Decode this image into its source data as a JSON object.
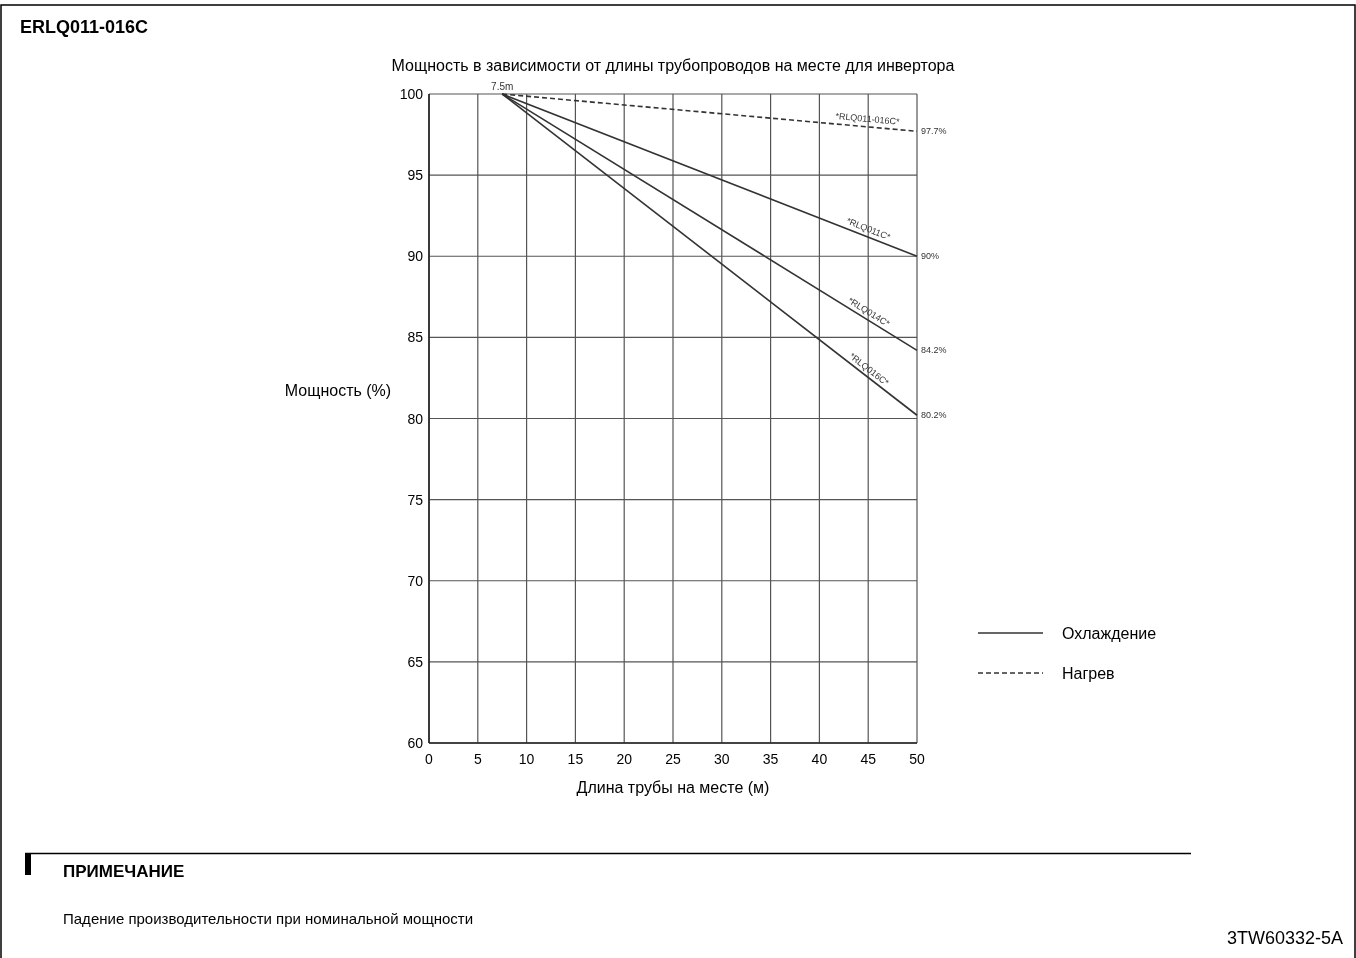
{
  "chart_data": {
    "type": "line",
    "title": "Мощность в зависимости от длины трубопроводов на месте для инвертора",
    "xlabel": "Длина трубы на месте (м)",
    "ylabel": "Мощность (%)",
    "x": [
      7.5,
      50
    ],
    "series": [
      {
        "name": "*RLQ011-016C*",
        "color": "#333333",
        "line_style": "dashed",
        "values": [
          100,
          97.7
        ],
        "value_labels": [
          null,
          "97.7%"
        ]
      },
      {
        "name": "*RLQ011C*",
        "color": "#333333",
        "line_style": "solid",
        "values": [
          100,
          90
        ],
        "value_labels": [
          null,
          "90%"
        ]
      },
      {
        "name": "*RLQ014C*",
        "color": "#333333",
        "line_style": "solid",
        "values": [
          100,
          84.2
        ],
        "value_labels": [
          null,
          "84.2%"
        ]
      },
      {
        "name": "*RLQ016C*",
        "color": "#333333",
        "line_style": "solid",
        "values": [
          100,
          80.2
        ],
        "value_labels": [
          null,
          "80.2%"
        ]
      }
    ],
    "xlim": [
      0,
      50
    ],
    "xticks": [
      0,
      5,
      10,
      15,
      20,
      25,
      30,
      35,
      40,
      45,
      50
    ],
    "ylim": [
      60,
      100
    ],
    "yticks": [
      60,
      65,
      70,
      75,
      80,
      85,
      90,
      95,
      100
    ],
    "grid": true,
    "legend": "right",
    "annotations": [
      "ERLQ011-016C",
      "ПРИМЕЧАНИЕ",
      "Падение производительности при номинальной мощности",
      "3TW60332-5A",
      "Охлаждение",
      "Нагрев",
      {
        "text": "7.5m",
        "x": 7.5,
        "y": 100
      }
    ]
  }
}
